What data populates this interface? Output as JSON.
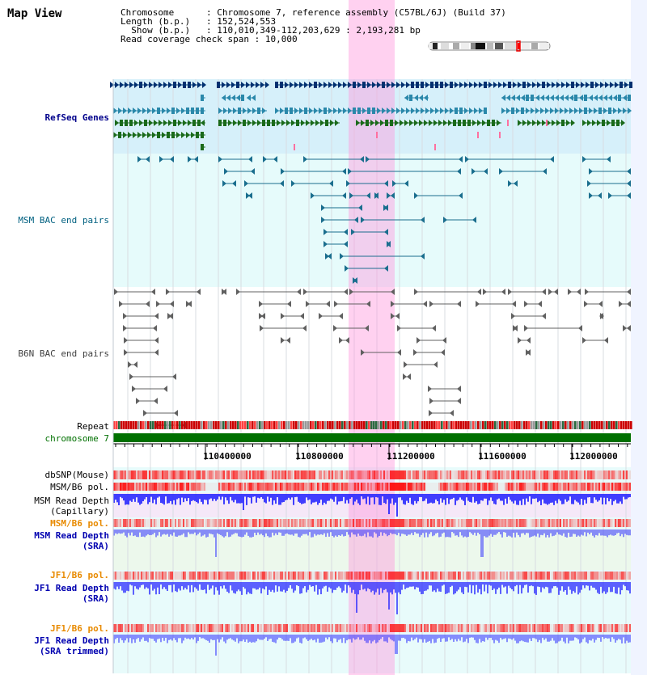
{
  "page": {
    "title": "Map View"
  },
  "info": {
    "chromosome_label": "Chromosome",
    "chromosome_value": "Chromosome 7, reference assembly (C57BL/6J) (Build 37)",
    "length_label": "Length (b.p.)",
    "length_value": "152,524,553",
    "show_label": "Show (b.p.)",
    "show_value": "110,010,349-112,203,629 : 2,193,281 bp",
    "coverage_label": "Read coverage check span",
    "coverage_value": "10,000"
  },
  "tracks": {
    "refseq": {
      "label": "RefSeq Genes",
      "color": "#00008b"
    },
    "msm_bac": {
      "label": "MSM BAC end pairs",
      "color": "#006080"
    },
    "b6n_bac": {
      "label": "B6N BAC end pairs",
      "color": "#404040"
    },
    "repeat": {
      "label": "Repeat"
    },
    "chromosome": {
      "label": "chromosome 7",
      "color": "#007000"
    },
    "dbsnp": {
      "label": "dbSNP(Mouse)"
    },
    "msm_b6_pol": {
      "label": "MSM/B6 pol."
    },
    "msm_depth_cap_1": {
      "label": "MSM Read Depth"
    },
    "msm_depth_cap_2": {
      "label": "(Capillary)"
    },
    "msm_b6_pol_sra": {
      "label": "MSM/B6 pol.",
      "color": "#e88a00"
    },
    "msm_depth_sra_1": {
      "label": "MSM Read Depth",
      "color": "#0000b0"
    },
    "msm_depth_sra_2": {
      "label": "(SRA)",
      "color": "#0000b0"
    },
    "jf1_b6_pol": {
      "label": "JF1/B6 pol.",
      "color": "#e88a00"
    },
    "jf1_depth_1": {
      "label": "JF1 Read Depth",
      "color": "#0000b0"
    },
    "jf1_depth_2": {
      "label": "(SRA)",
      "color": "#0000b0"
    },
    "jf1_b6_pol_trim": {
      "label": "JF1/B6 pol.",
      "color": "#e88a00"
    },
    "jf1_trim_1": {
      "label": "JF1 Read Depth",
      "color": "#0000b0"
    },
    "jf1_trim_2": {
      "label": "(SRA trimmed)",
      "color": "#0000b0"
    }
  },
  "ruler": {
    "ticks": [
      "110400000",
      "110800000",
      "111200000",
      "111600000",
      "112000000"
    ]
  },
  "colors": {
    "highlight": "#ff99dd",
    "refseq_bg": "#d6f0fa",
    "bac_bg": "#e6fbfb",
    "gene_dark": "#003070",
    "gene_teal": "#2a88aa",
    "gene_green": "#1a6a1a",
    "pol_red": "#ff0000",
    "depth_blue": "#2020ff"
  }
}
